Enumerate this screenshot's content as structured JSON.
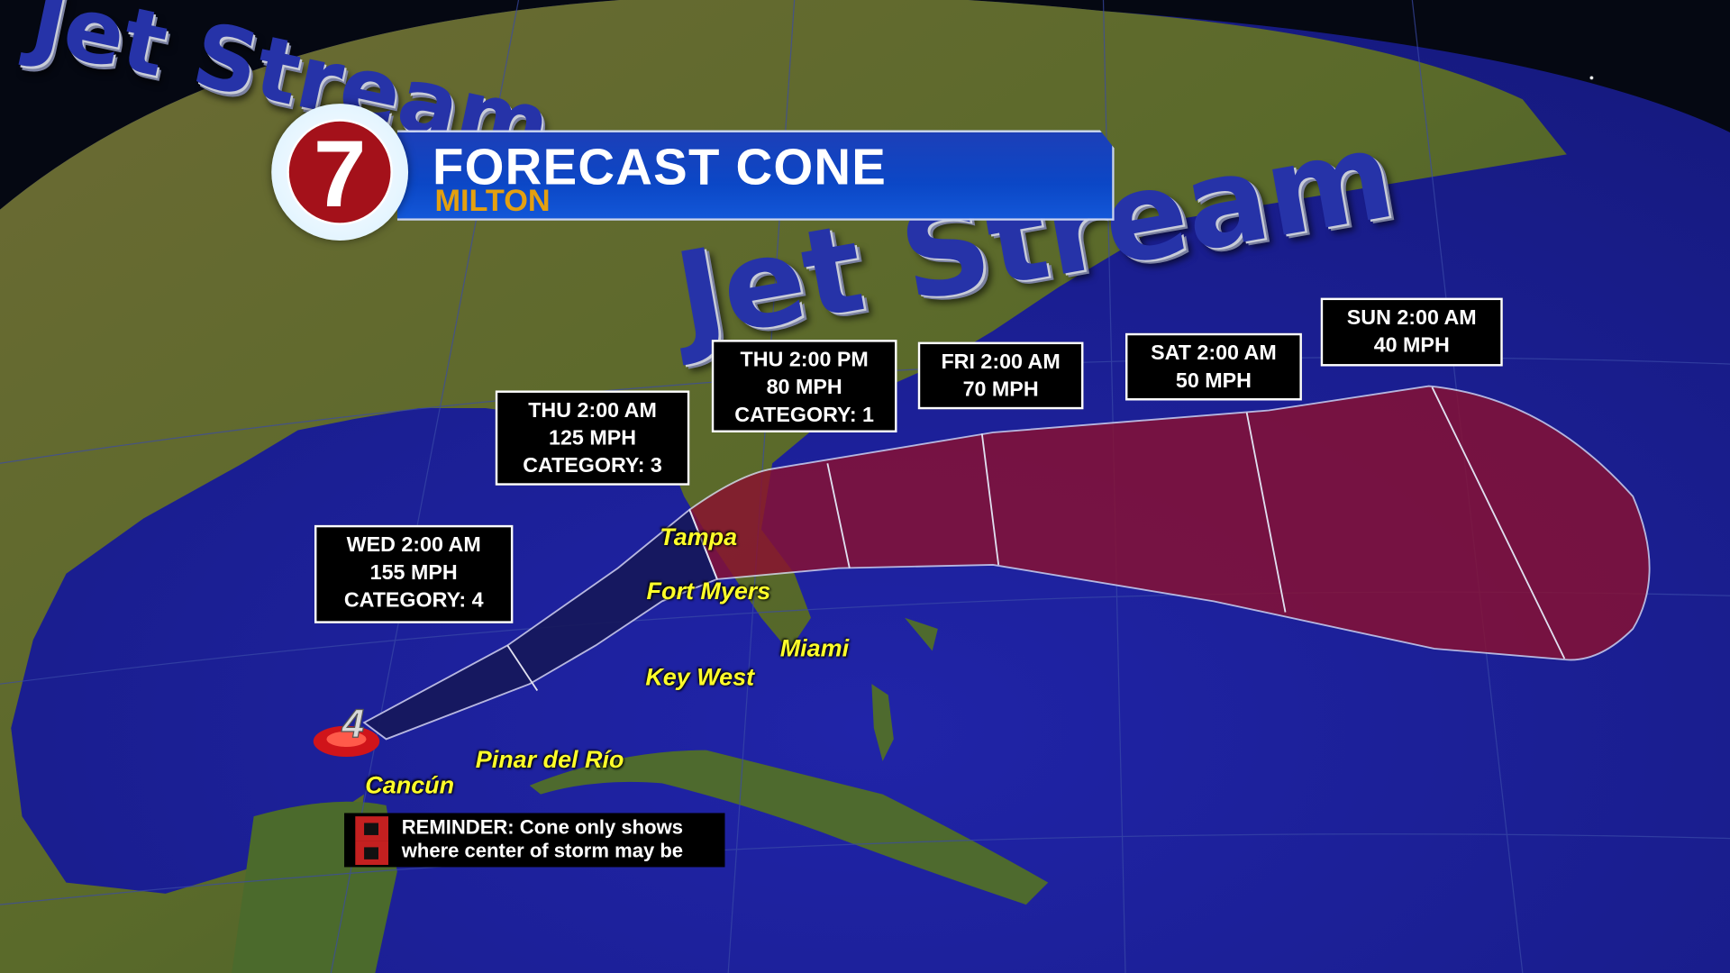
{
  "header": {
    "title": "FORECAST CONE",
    "storm_name": "MILTON",
    "logo": "7"
  },
  "overlay_text": {
    "jet_stream": "Jet Stream"
  },
  "forecast_points": [
    {
      "time": "WED 2:00 AM",
      "wind": "155 MPH",
      "category": "CATEGORY: 4"
    },
    {
      "time": "THU 2:00 AM",
      "wind": "125 MPH",
      "category": "CATEGORY: 3"
    },
    {
      "time": "THU 2:00 PM",
      "wind": "80 MPH",
      "category": "CATEGORY: 1"
    },
    {
      "time": "FRI 2:00 AM",
      "wind": "70 MPH"
    },
    {
      "time": "SAT 2:00 AM",
      "wind": "50 MPH"
    },
    {
      "time": "SUN 2:00 AM",
      "wind": "40 MPH"
    }
  ],
  "cities": [
    "Tampa",
    "Fort Myers",
    "Miami",
    "Key West",
    "Pinar del Río",
    "Cancún"
  ],
  "current_storm": {
    "category": "4",
    "icon": "hurricane-icon"
  },
  "reminder": {
    "line1": "REMINDER: Cone only shows",
    "line2": "where center of storm may be",
    "icon": "hurricane-warning-flag-icon"
  },
  "colors": {
    "cone_hurricane": "#8a1030",
    "cone_storm": "#16185a",
    "banner": "#0b47c6",
    "storm_name": "#e4a010",
    "city_label": "#ffff2a"
  }
}
